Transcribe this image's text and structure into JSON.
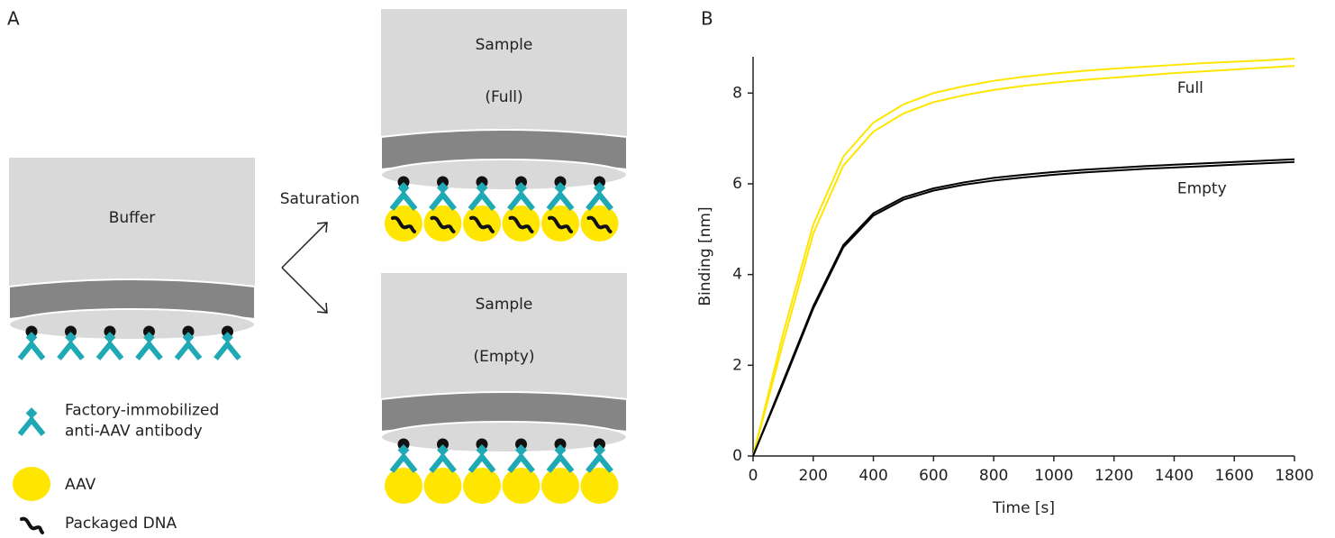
{
  "panel_a": {
    "label": "A",
    "buffer_tip": "Buffer",
    "arrow_label": "Saturation",
    "full_tip": [
      "Sample",
      "(Full)"
    ],
    "empty_tip": [
      "Sample",
      "(Empty)"
    ],
    "legend": [
      {
        "lines": [
          "Factory-immobilized",
          "anti-AAV antibody"
        ]
      },
      {
        "lines": [
          "AAV"
        ]
      },
      {
        "lines": [
          "Packaged DNA"
        ]
      }
    ]
  },
  "chart_data": {
    "type": "line",
    "panel_label": "B",
    "x_label": "Time [s]",
    "y_label": "Binding [nm]",
    "x": [
      0,
      100,
      200,
      300,
      400,
      500,
      600,
      700,
      800,
      900,
      1000,
      1100,
      1200,
      1300,
      1400,
      1500,
      1600,
      1700,
      1800
    ],
    "xlim": [
      0,
      1800
    ],
    "xticks": [
      0,
      200,
      400,
      600,
      800,
      1000,
      1200,
      1400,
      1600,
      1800
    ],
    "ylim": [
      0,
      8.8
    ],
    "yticks": [
      0,
      2,
      4,
      6,
      8
    ],
    "series": [
      {
        "name": "Full",
        "color": "#ffe600",
        "values": [
          0,
          2.7,
          5.1,
          6.6,
          7.35,
          7.75,
          8.0,
          8.15,
          8.27,
          8.36,
          8.43,
          8.49,
          8.54,
          8.58,
          8.62,
          8.66,
          8.69,
          8.72,
          8.76
        ]
      },
      {
        "color": "#ffe600",
        "values": [
          0,
          2.5,
          4.9,
          6.4,
          7.15,
          7.55,
          7.8,
          7.95,
          8.07,
          8.16,
          8.23,
          8.29,
          8.34,
          8.39,
          8.44,
          8.48,
          8.52,
          8.56,
          8.6
        ]
      },
      {
        "name": "Empty",
        "color": "#000000",
        "values": [
          0,
          1.65,
          3.3,
          4.65,
          5.35,
          5.7,
          5.9,
          6.03,
          6.13,
          6.2,
          6.26,
          6.31,
          6.35,
          6.39,
          6.42,
          6.45,
          6.48,
          6.51,
          6.54
        ]
      },
      {
        "color": "#000000",
        "values": [
          0,
          1.6,
          3.25,
          4.6,
          5.3,
          5.65,
          5.85,
          5.98,
          6.07,
          6.14,
          6.2,
          6.25,
          6.29,
          6.33,
          6.36,
          6.39,
          6.42,
          6.45,
          6.48
        ]
      }
    ]
  }
}
